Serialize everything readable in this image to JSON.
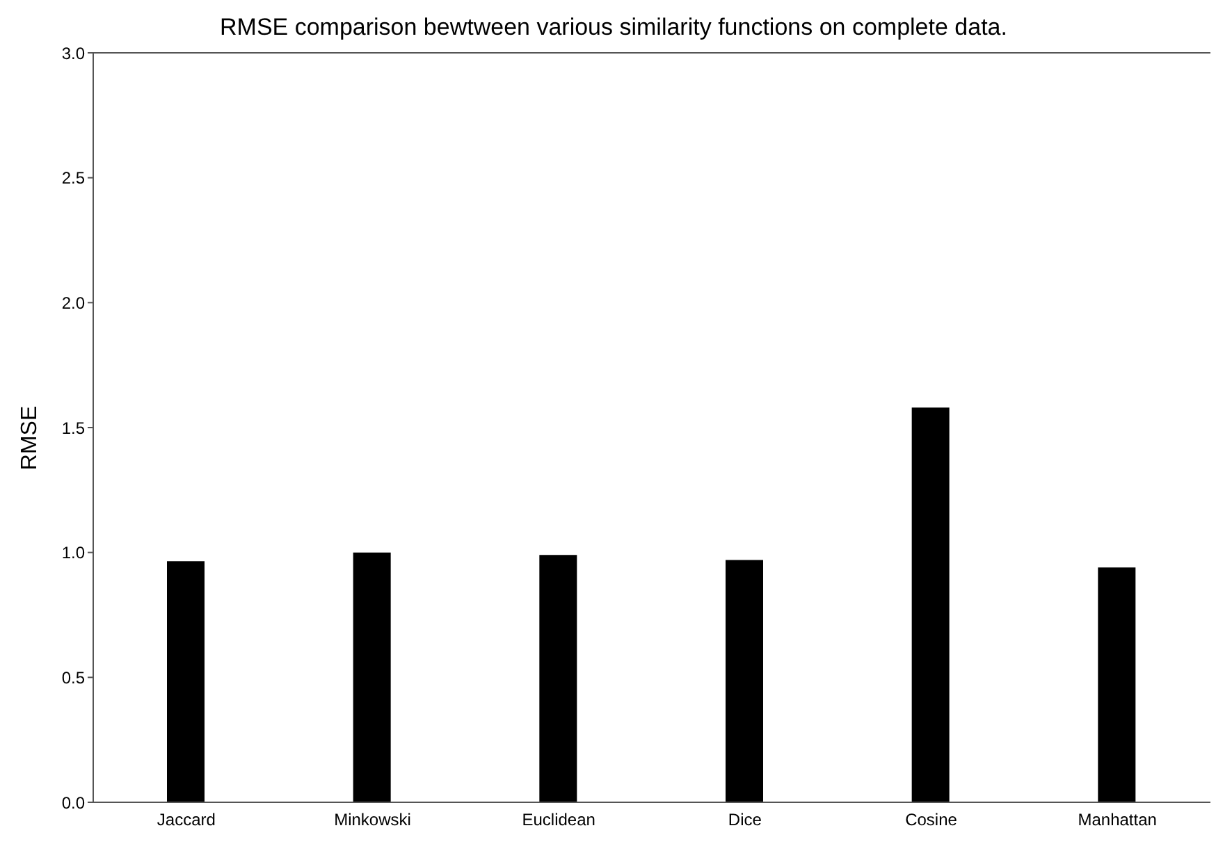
{
  "chart_data": {
    "type": "bar",
    "title": "RMSE comparison bewtween various similarity functions on complete data.",
    "ylabel": "RMSE",
    "categories": [
      "Jaccard",
      "Minkowski",
      "Euclidean",
      "Dice",
      "Cosine",
      "Manhattan"
    ],
    "values": [
      0.965,
      1.0,
      0.99,
      0.97,
      1.58,
      0.94
    ],
    "color": "#000000",
    "ylim": [
      0,
      3
    ],
    "yticks": [
      {
        "value": 0,
        "label": "0.0"
      },
      {
        "value": 0.5,
        "label": "0.5"
      },
      {
        "value": 1,
        "label": "1.0"
      },
      {
        "value": 1.5,
        "label": "1.5"
      },
      {
        "value": 2,
        "label": "2.0"
      },
      {
        "value": 2.5,
        "label": "2.5"
      },
      {
        "value": 3,
        "label": "3.0"
      }
    ],
    "grid": false
  }
}
